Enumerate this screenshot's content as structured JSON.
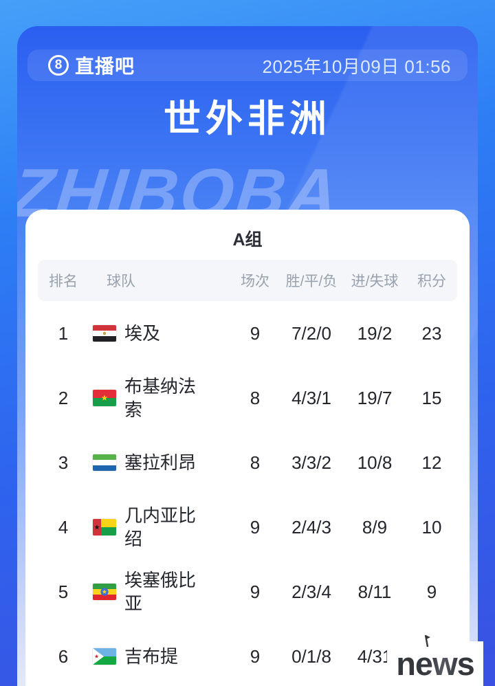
{
  "header": {
    "logo_badge": "8",
    "logo_text": "直播吧",
    "datetime": "2025年10月09日 01:56"
  },
  "title": "世外非洲",
  "watermark": "ZHIBOBA",
  "group_title": "A组",
  "table": {
    "columns": [
      "排名",
      "球队",
      "场次",
      "胜/平/负",
      "进/失球",
      "积分"
    ],
    "rows": [
      {
        "rank": "1",
        "team": "埃及",
        "flag": "egypt",
        "played": "9",
        "wdl": "7/2/0",
        "goals": "19/2",
        "points": "23"
      },
      {
        "rank": "2",
        "team": "布基纳法索",
        "flag": "burkina-faso",
        "played": "8",
        "wdl": "4/3/1",
        "goals": "19/7",
        "points": "15"
      },
      {
        "rank": "3",
        "team": "塞拉利昂",
        "flag": "sierra-leone",
        "played": "8",
        "wdl": "3/3/2",
        "goals": "10/8",
        "points": "12"
      },
      {
        "rank": "4",
        "team": "几内亚比绍",
        "flag": "guinea-bissau",
        "played": "9",
        "wdl": "2/4/3",
        "goals": "8/9",
        "points": "10"
      },
      {
        "rank": "5",
        "team": "埃塞俄比亚",
        "flag": "ethiopia",
        "played": "9",
        "wdl": "2/3/4",
        "goals": "8/11",
        "points": "9"
      },
      {
        "rank": "6",
        "team": "吉布提",
        "flag": "djibouti",
        "played": "9",
        "wdl": "0/1/8",
        "goals": "4/31",
        "points": "1"
      }
    ]
  },
  "news_logo": "news",
  "colors": {
    "accent_blue": "#2d7ef5",
    "panel_blue": "#3a73f3",
    "card_bg": "#ffffff",
    "thead_bg": "#f4f6f9",
    "thead_text": "#99a1ae",
    "body_text": "#23262c"
  }
}
